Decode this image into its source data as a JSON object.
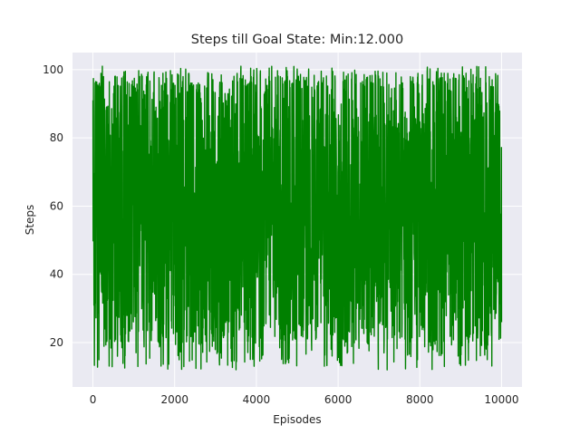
{
  "chart_data": {
    "type": "line",
    "title": "Steps till Goal State: Min:12.000",
    "xlabel": "Episodes",
    "ylabel": "Steps",
    "xlim": [
      -500,
      10500
    ],
    "ylim": [
      7,
      105
    ],
    "x_ticks": [
      0,
      2000,
      4000,
      6000,
      8000,
      10000
    ],
    "y_ticks": [
      20,
      40,
      60,
      80,
      100
    ],
    "grid": true,
    "legend": "none",
    "series": [
      {
        "color": "#008000",
        "x_range": [
          1,
          10000
        ],
        "y_min": 12,
        "y_max": 101,
        "key_points": [
          {
            "x": 1,
            "y": 91
          },
          {
            "x": 40,
            "y": 34
          },
          {
            "x": 90,
            "y": 78
          },
          {
            "x": 150,
            "y": 30
          },
          {
            "x": 230,
            "y": 101
          },
          {
            "x": 300,
            "y": 24
          },
          {
            "x": 600,
            "y": 16
          },
          {
            "x": 1100,
            "y": 13
          },
          {
            "x": 7200,
            "y": 12
          },
          {
            "x": 8600,
            "y": 13
          },
          {
            "x": 9900,
            "y": 90
          },
          {
            "x": 10000,
            "y": 26
          }
        ],
        "typical_band": [
          20,
          99
        ]
      }
    ]
  },
  "colors": {
    "plot_background": "#eaeaf2",
    "grid": "#ffffff",
    "line": "#008000"
  }
}
